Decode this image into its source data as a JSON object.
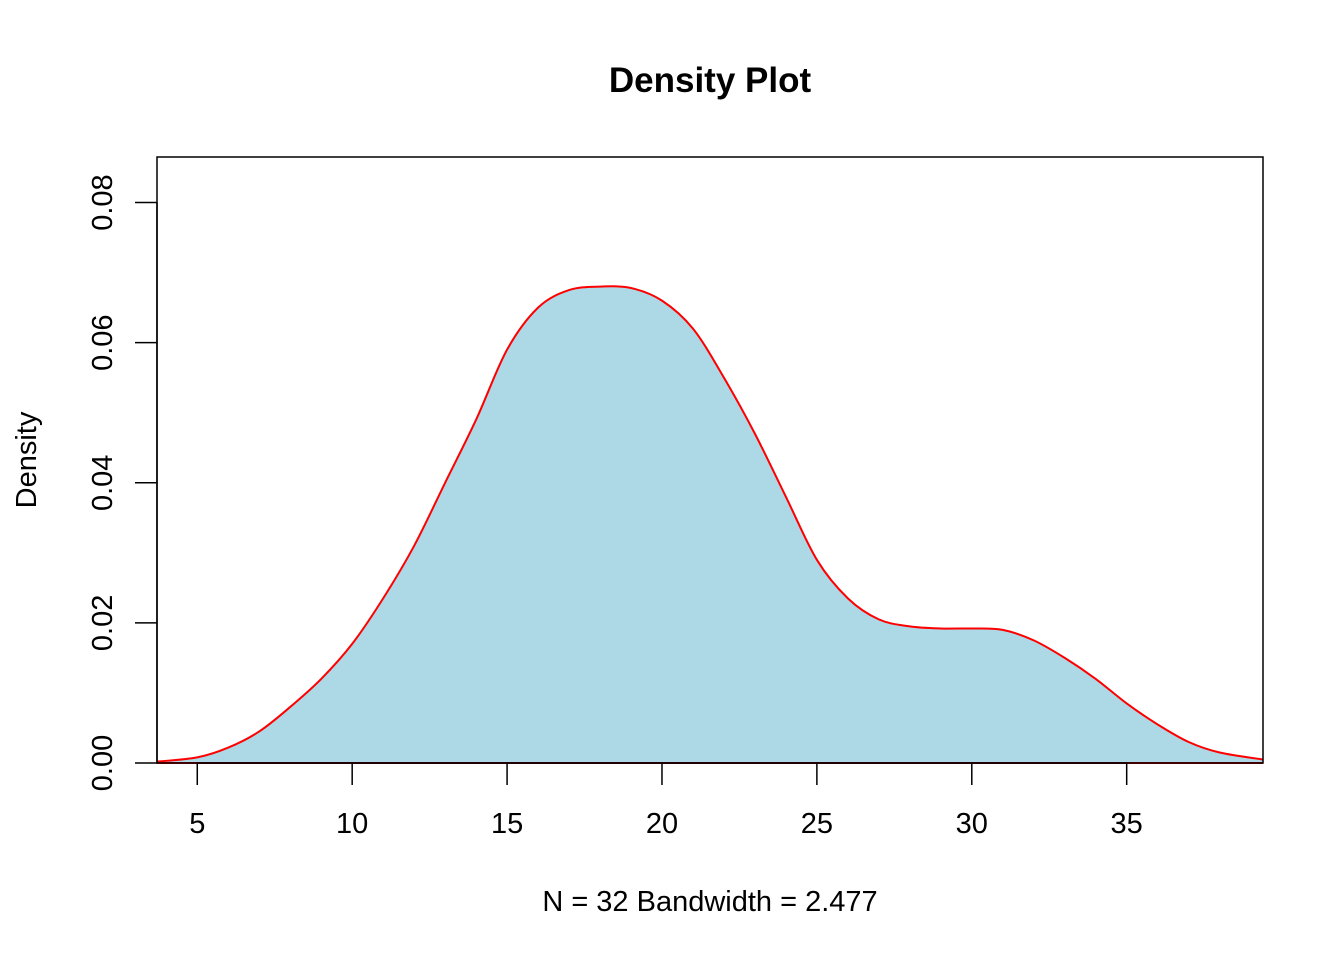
{
  "chart_data": {
    "type": "area",
    "title": "Density Plot",
    "xlabel": "N = 32   Bandwidth = 2.477",
    "ylabel": "Density",
    "xlim": [
      3.7,
      39.4
    ],
    "ylim": [
      0,
      0.0865
    ],
    "x_ticks": [
      5,
      10,
      15,
      20,
      25,
      30,
      35
    ],
    "y_ticks": [
      0.0,
      0.02,
      0.04,
      0.06,
      0.08
    ],
    "x_tick_labels": [
      "5",
      "10",
      "15",
      "20",
      "25",
      "30",
      "35"
    ],
    "y_tick_labels": [
      "0.00",
      "0.02",
      "0.04",
      "0.06",
      "0.08"
    ],
    "grid": false,
    "fill_color": "#add8e6",
    "line_color": "#ff0000",
    "baseline": 0,
    "series": [
      {
        "x": [
          3.7,
          5,
          6,
          7,
          8,
          9,
          10,
          11,
          12,
          13,
          14,
          15,
          16,
          17,
          18,
          19,
          20,
          21,
          22,
          23,
          24,
          25,
          26,
          27,
          28,
          29,
          30,
          31,
          32,
          33,
          34,
          35,
          36,
          37,
          38,
          39.4
        ],
        "y": [
          0.0002,
          0.0008,
          0.0022,
          0.0045,
          0.008,
          0.012,
          0.017,
          0.0235,
          0.031,
          0.04,
          0.049,
          0.059,
          0.065,
          0.0675,
          0.068,
          0.0678,
          0.066,
          0.062,
          0.055,
          0.047,
          0.038,
          0.029,
          0.0235,
          0.0205,
          0.0195,
          0.0192,
          0.0192,
          0.019,
          0.0175,
          0.015,
          0.012,
          0.0085,
          0.0055,
          0.003,
          0.0015,
          0.0005
        ]
      }
    ]
  }
}
